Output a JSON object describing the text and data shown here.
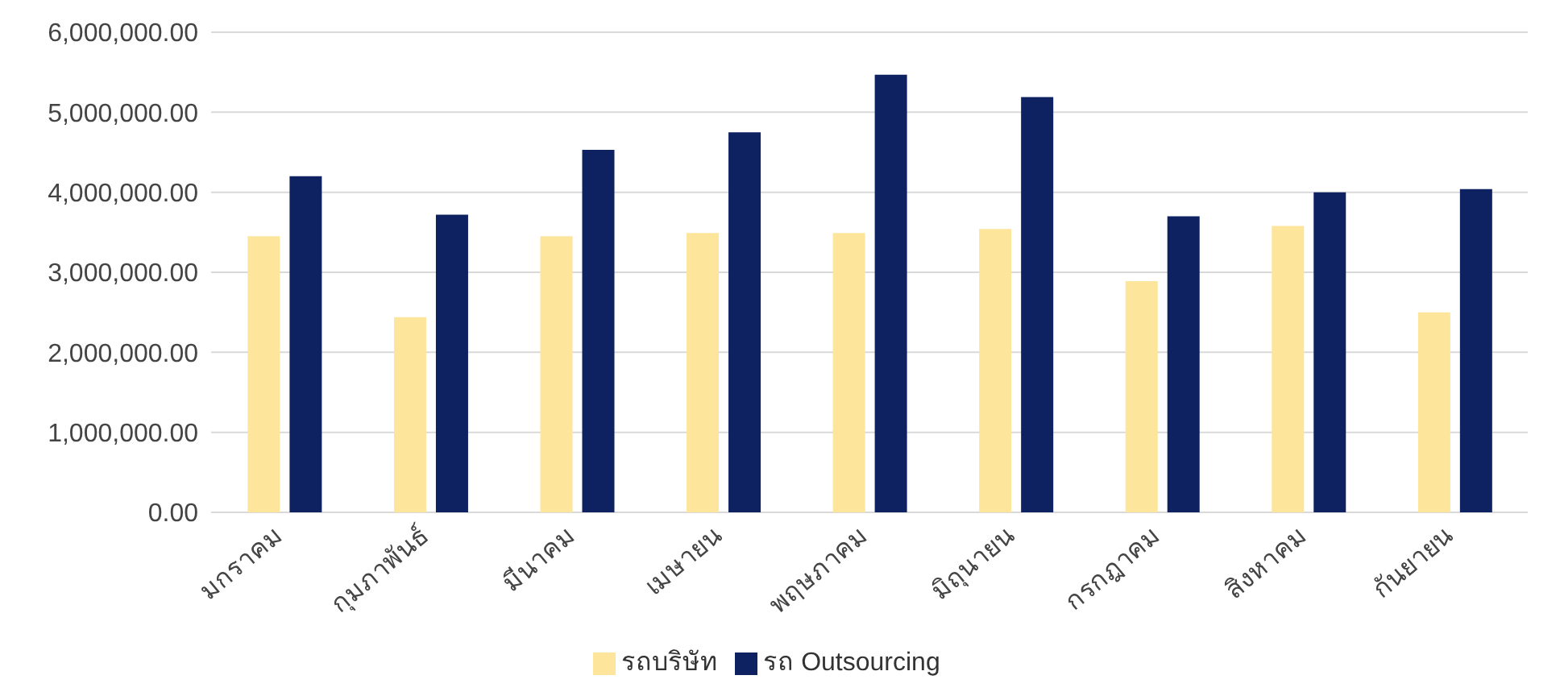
{
  "chart_data": {
    "type": "bar",
    "categories": [
      "มกราคม",
      "กุมภาพันธ์",
      "มีนาคม",
      "เมษายน",
      "พฤษภาคม",
      "มิถุนายน",
      "กรกฎาคม",
      "สิงหาคม",
      "กันยายน"
    ],
    "series": [
      {
        "name": "รถบริษัท",
        "color": "#fde59c",
        "values": [
          3450000,
          2440000,
          3450000,
          3490000,
          3490000,
          3540000,
          2890000,
          3580000,
          2500000
        ]
      },
      {
        "name": "รถ Outsourcing",
        "color": "#0e2160",
        "values": [
          4200000,
          3720000,
          4530000,
          4750000,
          5470000,
          5190000,
          3700000,
          4000000,
          4040000
        ]
      }
    ],
    "ylim": [
      0,
      6000000
    ],
    "yticks": [
      {
        "value": 0,
        "label": "0.00"
      },
      {
        "value": 1000000,
        "label": "1,000,000.00"
      },
      {
        "value": 2000000,
        "label": "2,000,000.00"
      },
      {
        "value": 3000000,
        "label": "3,000,000.00"
      },
      {
        "value": 4000000,
        "label": "4,000,000.00"
      },
      {
        "value": 5000000,
        "label": "5,000,000.00"
      },
      {
        "value": 6000000,
        "label": "6,000,000.00"
      }
    ],
    "grid": "y",
    "legend": "bottom"
  }
}
